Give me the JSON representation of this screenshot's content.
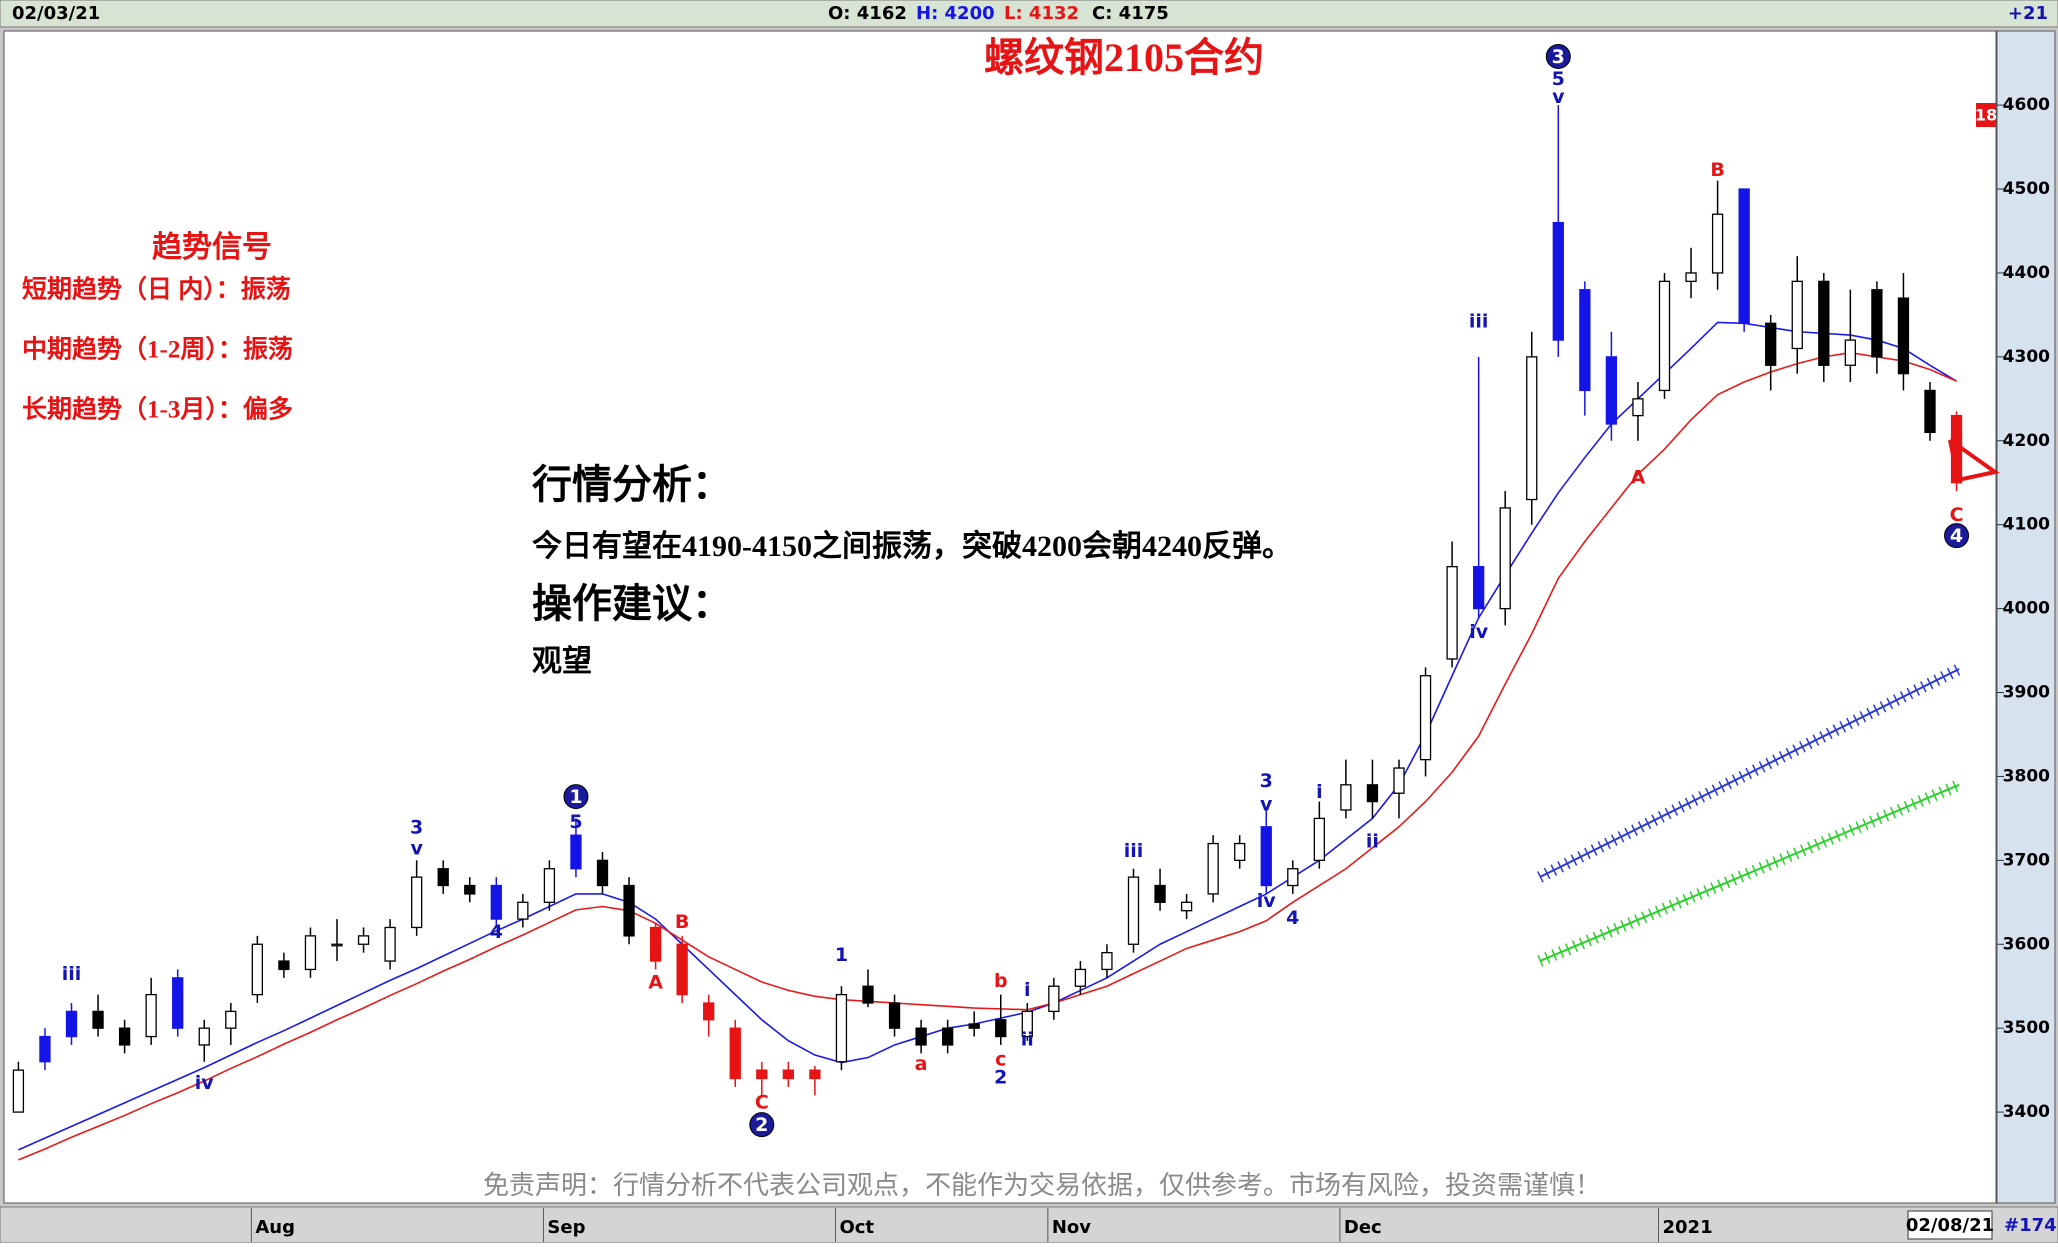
{
  "top_bar": {
    "date": "02/03/21",
    "ohlc": [
      "O: 4162",
      "H: 4200",
      "L: 4132",
      "C: 4175"
    ],
    "change": "+21"
  },
  "bottom_bar": {
    "date": "02/08/21",
    "count": "#174"
  },
  "chart_data": {
    "type": "candlestick",
    "title": "螺纹钢2105合约",
    "categories": [
      null,
      null,
      null,
      null,
      null,
      null,
      null,
      null,
      null,
      "Aug",
      null,
      null,
      null,
      null,
      null,
      null,
      null,
      null,
      null,
      null,
      "Sep",
      null,
      null,
      null,
      null,
      null,
      null,
      null,
      null,
      null,
      null,
      "Oct",
      null,
      null,
      null,
      null,
      null,
      null,
      null,
      "Nov",
      null,
      null,
      null,
      null,
      null,
      null,
      null,
      null,
      null,
      null,
      "Dec",
      null,
      null,
      null,
      null,
      null,
      null,
      null,
      null,
      null,
      null,
      null,
      "2021",
      null,
      null,
      null,
      null,
      null,
      null,
      null,
      null,
      null,
      null,
      null
    ],
    "open": [
      3400,
      3460,
      3490,
      3520,
      3500,
      3490,
      3560,
      3480,
      3500,
      3540,
      3580,
      3570,
      3600,
      3600,
      3580,
      3620,
      3690,
      3670,
      3670,
      3630,
      3650,
      3690,
      3700,
      3670,
      3620,
      3600,
      3530,
      3500,
      3450,
      3440,
      3450,
      3460,
      3550,
      3530,
      3500,
      3480,
      3500,
      3510,
      3490,
      3520,
      3550,
      3570,
      3600,
      3670,
      3650,
      3660,
      3720,
      3740,
      3670,
      3700,
      3760,
      3790,
      3780,
      3820,
      3940,
      4050,
      4000,
      4130,
      4460,
      4380,
      4300,
      4230,
      4260,
      4390,
      4400,
      4500,
      4340,
      4310,
      4390,
      4290,
      4380,
      4370,
      4260,
      4230
    ],
    "high": [
      3460,
      3500,
      3530,
      3540,
      3510,
      3560,
      3570,
      3510,
      3530,
      3610,
      3590,
      3620,
      3630,
      3620,
      3630,
      3700,
      3700,
      3680,
      3680,
      3660,
      3700,
      3750,
      3710,
      3680,
      3625,
      3610,
      3540,
      3510,
      3460,
      3460,
      3455,
      3550,
      3570,
      3540,
      3510,
      3510,
      3520,
      3540,
      3530,
      3560,
      3580,
      3600,
      3690,
      3690,
      3660,
      3730,
      3730,
      3760,
      3700,
      3770,
      3820,
      3820,
      3820,
      3930,
      4080,
      4300,
      4140,
      4330,
      4600,
      4390,
      4330,
      4270,
      4400,
      4430,
      4510,
      4500,
      4350,
      4420,
      4400,
      4380,
      4390,
      4400,
      4270,
      4235
    ],
    "low": [
      3400,
      3450,
      3480,
      3490,
      3470,
      3480,
      3490,
      3460,
      3480,
      3530,
      3560,
      3560,
      3580,
      3590,
      3570,
      3610,
      3660,
      3650,
      3620,
      3620,
      3640,
      3680,
      3660,
      3600,
      3570,
      3530,
      3490,
      3430,
      3420,
      3430,
      3420,
      3450,
      3525,
      3490,
      3470,
      3470,
      3490,
      3480,
      3485,
      3510,
      3540,
      3560,
      3590,
      3640,
      3630,
      3650,
      3690,
      3660,
      3660,
      3690,
      3750,
      3750,
      3750,
      3800,
      3930,
      3990,
      3980,
      4100,
      4300,
      4230,
      4200,
      4200,
      4250,
      4370,
      4380,
      4330,
      4260,
      4280,
      4270,
      4270,
      4280,
      4260,
      4200,
      4140
    ],
    "close": [
      3450,
      3490,
      3520,
      3500,
      3480,
      3540,
      3500,
      3500,
      3520,
      3600,
      3570,
      3610,
      3600,
      3610,
      3620,
      3680,
      3670,
      3660,
      3630,
      3650,
      3690,
      3730,
      3670,
      3610,
      3580,
      3540,
      3510,
      3440,
      3440,
      3450,
      3440,
      3540,
      3530,
      3500,
      3480,
      3500,
      3505,
      3490,
      3520,
      3550,
      3570,
      3590,
      3680,
      3650,
      3640,
      3720,
      3700,
      3670,
      3690,
      3750,
      3790,
      3770,
      3810,
      3920,
      4050,
      4000,
      4120,
      4300,
      4320,
      4260,
      4220,
      4250,
      4390,
      4400,
      4470,
      4340,
      4290,
      4390,
      4290,
      4320,
      4300,
      4280,
      4210,
      4150
    ],
    "colors": [
      "#ffffff",
      "#1414e6",
      "#1414e6",
      "#000000",
      "#000000",
      "#ffffff",
      "#1414e6",
      "#ffffff",
      "#ffffff",
      "#ffffff",
      "#000000",
      "#ffffff",
      "#ffffff",
      "#ffffff",
      "#ffffff",
      "#ffffff",
      "#000000",
      "#000000",
      "#1414e6",
      "#ffffff",
      "#ffffff",
      "#1414e6",
      "#000000",
      "#000000",
      "#e61414",
      "#e61414",
      "#e61414",
      "#e61414",
      "#e61414",
      "#e61414",
      "#e61414",
      "#ffffff",
      "#000000",
      "#000000",
      "#000000",
      "#000000",
      "#000000",
      "#000000",
      "#ffffff",
      "#ffffff",
      "#ffffff",
      "#ffffff",
      "#ffffff",
      "#000000",
      "#ffffff",
      "#ffffff",
      "#ffffff",
      "#1414e6",
      "#ffffff",
      "#ffffff",
      "#ffffff",
      "#000000",
      "#ffffff",
      "#ffffff",
      "#ffffff",
      "#1414e6",
      "#ffffff",
      "#ffffff",
      "#1414e6",
      "#1414e6",
      "#1414e6",
      "#ffffff",
      "#ffffff",
      "#ffffff",
      "#ffffff",
      "#1414e6",
      "#000000",
      "#ffffff",
      "#000000",
      "#ffffff",
      "#000000",
      "#000000",
      "#000000",
      "#e61414"
    ],
    "moving_averages": [
      {
        "color": "#1a1ae6",
        "values": [
          3355,
          3369,
          3383,
          3397,
          3411,
          3425,
          3439,
          3453,
          3468,
          3483,
          3497,
          3512,
          3527,
          3542,
          3557,
          3571,
          3586,
          3601,
          3616,
          3630,
          3645,
          3660,
          3660,
          3650,
          3630,
          3600,
          3570,
          3540,
          3510,
          3485,
          3468,
          3459,
          3465,
          3480,
          3490,
          3500,
          3505,
          3512,
          3519,
          3530,
          3545,
          3560,
          3580,
          3600,
          3615,
          3630,
          3645,
          3660,
          3680,
          3700,
          3725,
          3750,
          3790,
          3850,
          3920,
          3989,
          4040,
          4090,
          4138,
          4180,
          4220,
          4250,
          4280,
          4310,
          4341,
          4340,
          4335,
          4330,
          4328,
          4326,
          4320,
          4310,
          4290,
          4271
        ]
      },
      {
        "color": "#e61a1a",
        "values": [
          3343,
          3356,
          3370,
          3383,
          3396,
          3410,
          3423,
          3437,
          3452,
          3466,
          3481,
          3495,
          3510,
          3524,
          3539,
          3553,
          3568,
          3582,
          3597,
          3611,
          3626,
          3641,
          3645,
          3640,
          3625,
          3605,
          3585,
          3570,
          3555,
          3545,
          3538,
          3534,
          3532,
          3530,
          3528,
          3526,
          3524,
          3523,
          3522,
          3530,
          3540,
          3550,
          3565,
          3580,
          3595,
          3605,
          3615,
          3628,
          3650,
          3670,
          3690,
          3715,
          3740,
          3770,
          3805,
          3848,
          3910,
          3970,
          4036,
          4080,
          4120,
          4160,
          4190,
          4225,
          4255,
          4270,
          4282,
          4292,
          4300,
          4305,
          4300,
          4295,
          4285,
          4271
        ]
      }
    ],
    "channels": [
      {
        "color": "#2a3ad0",
        "x": [
          57.3,
          73.1
        ],
        "y": [
          3680,
          3928
        ]
      },
      {
        "color": "#2ad02a",
        "x": [
          57.3,
          73.1
        ],
        "y": [
          3580,
          3790
        ]
      }
    ],
    "annotations": [
      {
        "text": "iii",
        "x": 2,
        "y": 3565,
        "color": "#1414b4",
        "circled": false
      },
      {
        "text": "iv",
        "x": 7,
        "y": 3435,
        "color": "#1414b4",
        "circled": false
      },
      {
        "text": "3",
        "x": 15,
        "y": 3740,
        "color": "#1414b4",
        "circled": false
      },
      {
        "text": "v",
        "x": 15,
        "y": 3715,
        "color": "#1414b4",
        "circled": false
      },
      {
        "text": "4",
        "x": 18,
        "y": 3615,
        "color": "#1414b4",
        "circled": false
      },
      {
        "text": "1",
        "x": 21,
        "y": 3776,
        "color": "#1414b4",
        "circled": true
      },
      {
        "text": "5",
        "x": 21,
        "y": 3746,
        "color": "#1414b4",
        "circled": false
      },
      {
        "text": "A",
        "x": 24,
        "y": 3555,
        "color": "#e61414",
        "circled": false
      },
      {
        "text": "B",
        "x": 25,
        "y": 3627,
        "color": "#e61414",
        "circled": false
      },
      {
        "text": "C",
        "x": 28,
        "y": 3412,
        "color": "#e61414",
        "circled": false
      },
      {
        "text": "2",
        "x": 28,
        "y": 3385,
        "color": "#1414b4",
        "circled": true
      },
      {
        "text": "1",
        "x": 31,
        "y": 3588,
        "color": "#1414b4",
        "circled": false
      },
      {
        "text": "a",
        "x": 34,
        "y": 3458,
        "color": "#e61414",
        "circled": false
      },
      {
        "text": "b",
        "x": 37,
        "y": 3557,
        "color": "#e61414",
        "circled": false
      },
      {
        "text": "c",
        "x": 37,
        "y": 3463,
        "color": "#e61414",
        "circled": false
      },
      {
        "text": "2",
        "x": 37,
        "y": 3442,
        "color": "#1414b4",
        "circled": false
      },
      {
        "text": "i",
        "x": 38,
        "y": 3546,
        "color": "#1414b4",
        "circled": false
      },
      {
        "text": "ii",
        "x": 38,
        "y": 3487,
        "color": "#1414b4",
        "circled": false
      },
      {
        "text": "iii",
        "x": 42,
        "y": 3712,
        "color": "#1414b4",
        "circled": false
      },
      {
        "text": "3",
        "x": 47,
        "y": 3795,
        "color": "#1414b4",
        "circled": false
      },
      {
        "text": "v",
        "x": 47,
        "y": 3767,
        "color": "#1414b4",
        "circled": false
      },
      {
        "text": "iv",
        "x": 47,
        "y": 3652,
        "color": "#1414b4",
        "circled": false
      },
      {
        "text": "4",
        "x": 48,
        "y": 3632,
        "color": "#1414b4",
        "circled": false
      },
      {
        "text": "i",
        "x": 49,
        "y": 3782,
        "color": "#1414b4",
        "circled": false
      },
      {
        "text": "ii",
        "x": 51,
        "y": 3723,
        "color": "#1414b4",
        "circled": false
      },
      {
        "text": "iii",
        "x": 55,
        "y": 4343,
        "color": "#1414b4",
        "circled": false
      },
      {
        "text": "iv",
        "x": 55,
        "y": 3973,
        "color": "#1414b4",
        "circled": false
      },
      {
        "text": "3",
        "x": 58,
        "y": 4658,
        "color": "#1414b4",
        "circled": true
      },
      {
        "text": "5",
        "x": 58,
        "y": 4632,
        "color": "#1414b4",
        "circled": false
      },
      {
        "text": "v",
        "x": 58,
        "y": 4610,
        "color": "#1414b4",
        "circled": false
      },
      {
        "text": "A",
        "x": 61,
        "y": 4157,
        "color": "#e61414",
        "circled": false
      },
      {
        "text": "B",
        "x": 64,
        "y": 4523,
        "color": "#e61414",
        "circled": false
      },
      {
        "text": "C",
        "x": 73,
        "y": 4112,
        "color": "#e61414",
        "circled": false
      },
      {
        "text": "4",
        "x": 73,
        "y": 4087,
        "color": "#1414b4",
        "circled": true
      }
    ],
    "ylim": [
      3300,
      4680
    ],
    "yticks": [
      3400,
      3500,
      3600,
      3700,
      3800,
      3900,
      4000,
      4100,
      4200,
      4300,
      4400,
      4500,
      4600
    ],
    "price_tag": "18",
    "trend_panel": {
      "title": "趋势信号",
      "lines": [
        "短期趋势（日 内）：振荡",
        "中期趋势（1-2周）：振荡",
        "长期趋势（1-3月）：偏多"
      ]
    },
    "analysis": {
      "heading": "行情分析：",
      "text": "今日有望在4190-4150之间振荡，突破4200会朝4240反弹。",
      "advice_heading": "操作建议：",
      "advice": "观望"
    },
    "disclaimer": "免责声明：行情分析不代表公司观点，不能作为交易依据，仅供参考。市场有风险，投资需谨慎！"
  }
}
